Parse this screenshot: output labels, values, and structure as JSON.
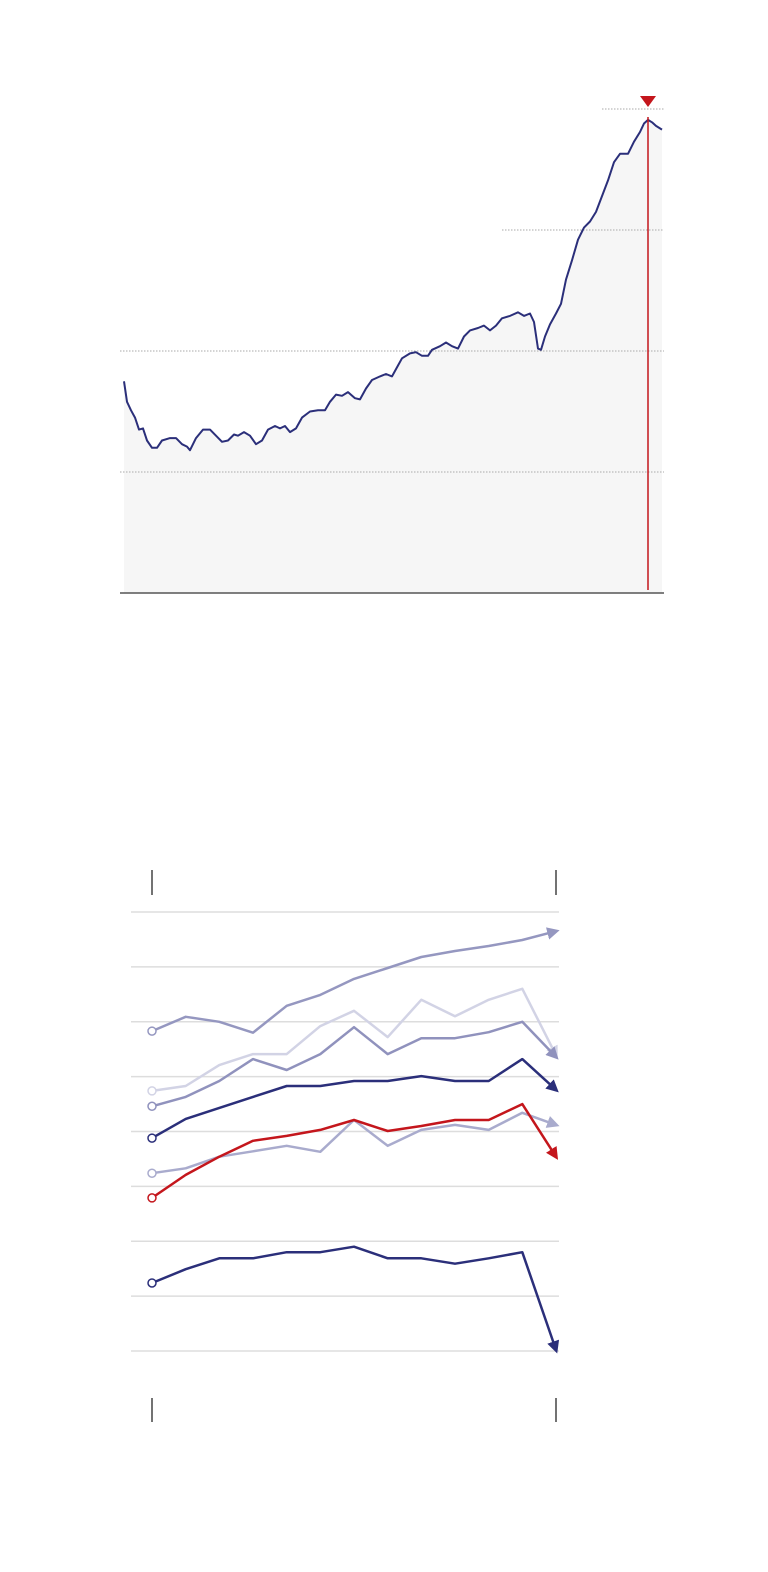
{
  "chart_data": [
    {
      "type": "line",
      "area": true,
      "area_color": "#f6f6f6",
      "color": "#2b2f7a",
      "xlim": [
        -4,
        540
      ],
      "ylim": [
        0,
        4
      ],
      "yticks": [
        0,
        1,
        2,
        3,
        4
      ],
      "grid": true,
      "marker": {
        "x": 524,
        "color": "#c4161c"
      },
      "x": [
        0,
        3,
        7,
        11,
        15,
        19,
        23,
        28,
        33,
        38,
        46,
        52,
        58,
        63,
        66,
        72,
        79,
        86,
        92,
        98,
        104,
        110,
        114,
        120,
        126,
        132,
        138,
        144,
        151,
        156,
        161,
        166,
        172,
        178,
        186,
        194,
        201,
        206,
        212,
        218,
        224,
        231,
        236,
        242,
        248,
        256,
        262,
        268,
        274,
        278,
        286,
        292,
        298,
        304,
        308,
        316,
        322,
        328,
        334,
        340,
        346,
        354,
        360,
        366,
        372,
        378,
        386,
        394,
        400,
        406,
        410,
        414,
        417,
        421,
        426,
        432,
        437,
        442,
        448,
        454,
        460,
        466,
        472,
        478,
        484,
        490,
        496,
        504,
        510,
        516,
        520,
        524,
        528,
        532,
        538
      ],
      "values": [
        1.75,
        1.58,
        1.51,
        1.45,
        1.35,
        1.36,
        1.26,
        1.2,
        1.2,
        1.26,
        1.28,
        1.28,
        1.23,
        1.21,
        1.18,
        1.28,
        1.35,
        1.35,
        1.3,
        1.25,
        1.26,
        1.31,
        1.3,
        1.33,
        1.3,
        1.23,
        1.26,
        1.35,
        1.38,
        1.36,
        1.38,
        1.33,
        1.36,
        1.45,
        1.5,
        1.51,
        1.51,
        1.58,
        1.64,
        1.63,
        1.66,
        1.61,
        1.6,
        1.69,
        1.76,
        1.79,
        1.81,
        1.79,
        1.88,
        1.94,
        1.98,
        1.99,
        1.96,
        1.96,
        2.01,
        2.04,
        2.07,
        2.04,
        2.02,
        2.12,
        2.17,
        2.19,
        2.21,
        2.17,
        2.21,
        2.27,
        2.29,
        2.32,
        2.29,
        2.31,
        2.24,
        2.02,
        2.01,
        2.12,
        2.22,
        2.31,
        2.39,
        2.59,
        2.75,
        2.92,
        3.02,
        3.07,
        3.15,
        3.28,
        3.41,
        3.56,
        3.63,
        3.63,
        3.73,
        3.81,
        3.88,
        3.91,
        3.89,
        3.86,
        3.83
      ]
    },
    {
      "type": "line",
      "arrows": true,
      "start_markers": true,
      "xlim": [
        0,
        12
      ],
      "xticks": [
        0,
        12
      ],
      "ylim": [
        0,
        8
      ],
      "yticks": [
        0,
        1,
        2,
        3,
        4,
        5,
        6,
        7,
        8
      ],
      "grid": true,
      "x": [
        0,
        1,
        2,
        3,
        4,
        5,
        6,
        7,
        8,
        9,
        10,
        11,
        12
      ],
      "series": [
        {
          "color": "#9597c0",
          "values": [
            5.83,
            6.09,
            6.0,
            5.8,
            6.29,
            6.49,
            6.78,
            6.98,
            7.18,
            7.29,
            7.38,
            7.49,
            7.65
          ]
        },
        {
          "color": "#d2d3e5",
          "values": [
            4.74,
            4.83,
            5.21,
            5.41,
            5.41,
            5.92,
            6.2,
            5.72,
            6.4,
            6.1,
            6.4,
            6.6,
            5.39
          ]
        },
        {
          "color": "#9092bd",
          "values": [
            4.46,
            4.63,
            4.92,
            5.32,
            5.12,
            5.41,
            5.9,
            5.41,
            5.7,
            5.7,
            5.81,
            6.0,
            5.36
          ]
        },
        {
          "color": "#2b2f7a",
          "values": [
            3.88,
            4.23,
            4.43,
            4.63,
            4.83,
            4.83,
            4.92,
            4.92,
            5.01,
            4.92,
            4.92,
            5.32,
            4.76
          ]
        },
        {
          "color": "#a9abcd",
          "values": [
            3.24,
            3.33,
            3.54,
            3.64,
            3.74,
            3.63,
            4.21,
            3.74,
            4.03,
            4.12,
            4.03,
            4.34,
            4.12
          ]
        },
        {
          "color": "#c4161c",
          "values": [
            2.79,
            3.21,
            3.54,
            3.83,
            3.92,
            4.03,
            4.21,
            4.01,
            4.1,
            4.21,
            4.21,
            4.5,
            3.54
          ]
        },
        {
          "color": "#2b2f7a",
          "values": [
            1.24,
            1.49,
            1.69,
            1.69,
            1.8,
            1.8,
            1.9,
            1.69,
            1.69,
            1.59,
            1.69,
            1.8,
            0.02
          ]
        }
      ]
    }
  ]
}
